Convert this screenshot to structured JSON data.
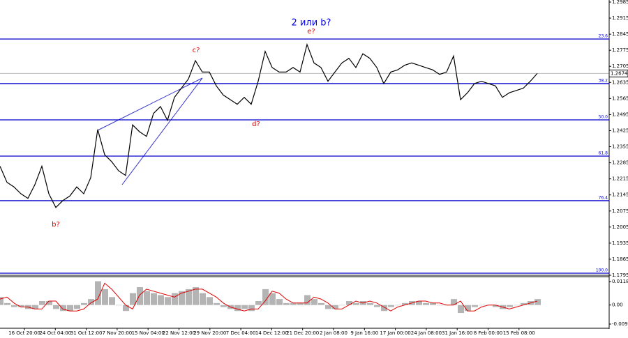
{
  "chart_data": [
    {
      "type": "line",
      "color": "#000000",
      "values": [
        1.227,
        1.22,
        1.218,
        1.215,
        1.213,
        1.219,
        1.227,
        1.215,
        1.209,
        1.212,
        1.214,
        1.218,
        1.215,
        1.222,
        1.243,
        1.232,
        1.229,
        1.225,
        1.223,
        1.245,
        1.242,
        1.24,
        1.25,
        1.253,
        1.247,
        1.257,
        1.261,
        1.265,
        1.273,
        1.268,
        1.268,
        1.262,
        1.258,
        1.256,
        1.254,
        1.257,
        1.254,
        1.264,
        1.277,
        1.27,
        1.268,
        1.268,
        1.27,
        1.268,
        1.28,
        1.272,
        1.27,
        1.264,
        1.268,
        1.272,
        1.274,
        1.27,
        1.276,
        1.274,
        1.27,
        1.263,
        1.268,
        1.269,
        1.271,
        1.272,
        1.271,
        1.27,
        1.269,
        1.267,
        1.268,
        1.275,
        1.256,
        1.259,
        1.263,
        1.264,
        1.263,
        1.262,
        1.257,
        1.259,
        1.26,
        1.261,
        1.264,
        1.2674
      ],
      "ylim": [
        1.1795,
        1.2994
      ],
      "yticks": [
        {
          "value": 1.2985,
          "label": "1.2985"
        },
        1.2915,
        1.2845,
        1.2775,
        1.2705,
        1.2635,
        1.2565,
        1.2495,
        1.2425,
        1.2355,
        1.2285,
        1.2215,
        1.2145,
        1.2075,
        1.2005,
        1.1935,
        1.1865,
        1.1795
      ],
      "x_labels": [
        "16 Oct 20:00",
        "24 Oct 04:00",
        "31 Oct 12:00",
        "7 Nov 20:00",
        "15 Nov 04:00",
        "22 Nov 12:00",
        "29 Nov 20:00",
        "7 Dec 04:00",
        "14 Dec 12:00",
        "21 Dec 20:00",
        "2 Jan 08:00",
        "9 Jan 16:00",
        "17 Jan 00:00",
        "24 Jan 08:00",
        "31 Jan 16:00",
        "8 Feb 00:00",
        "15 Feb 08:00"
      ],
      "levels": [
        {
          "value": 1.2824,
          "label": "23.6"
        },
        {
          "value": 1.263,
          "label": "38.2"
        },
        {
          "value": 1.2472,
          "label": "50.0"
        },
        {
          "value": 1.2314,
          "label": "61.8"
        },
        {
          "value": 1.212,
          "label": "76.4"
        },
        {
          "value": 1.1804,
          "label": "100.0"
        }
      ],
      "level_color": "#0000cc",
      "last_price": 1.2674,
      "annotations": [
        {
          "text": "2 или b?",
          "color": "#0000ee"
        },
        {
          "text": "e?",
          "color": "#dd0000"
        },
        {
          "text": "c?",
          "color": "#dd0000"
        },
        {
          "text": "d?",
          "color": "#dd0000"
        },
        {
          "text": "b?",
          "color": "#dd0000"
        }
      ]
    },
    {
      "type": "macd",
      "ylim": [
        -0.01135,
        0.01394
      ],
      "yticks": [
        0.01183,
        {
          "value": 0,
          "label": "0.00"
        },
        -0.00959
      ],
      "histogram": {
        "color": "#b4b4b4",
        "values": [
          0.004,
          0.001,
          -0.001,
          -0.001,
          -0.002,
          -0.002,
          0.002,
          0.002,
          -0.002,
          -0.003,
          -0.003,
          -0.002,
          0.001,
          0.003,
          0.012,
          0.008,
          0.004,
          0.0,
          -0.003,
          0.006,
          0.009,
          0.007,
          0.006,
          0.005,
          0.004,
          0.006,
          0.007,
          0.008,
          0.009,
          0.006,
          0.004,
          0.001,
          -0.001,
          -0.002,
          -0.003,
          -0.002,
          -0.003,
          0.002,
          0.008,
          0.006,
          0.003,
          0.001,
          0.001,
          0.001,
          0.005,
          0.003,
          0.001,
          -0.002,
          -0.002,
          0.0,
          0.002,
          0.001,
          0.002,
          0.001,
          -0.001,
          -0.003,
          -0.001,
          0.0,
          0.001,
          0.002,
          0.002,
          0.001,
          0.001,
          0.0,
          0.0,
          0.003,
          -0.004,
          -0.003,
          -0.001,
          0.0,
          0.0,
          -0.001,
          -0.002,
          -0.001,
          0.0,
          0.001,
          0.002,
          0.003
        ]
      },
      "signal": {
        "color": "#e00000",
        "values": [
          0.003,
          0.004,
          0.001,
          -0.001,
          -0.001,
          -0.002,
          -0.002,
          0.002,
          0.002,
          -0.002,
          -0.003,
          -0.003,
          -0.002,
          0.001,
          0.003,
          0.011,
          0.008,
          0.004,
          0.0,
          -0.002,
          0.005,
          0.008,
          0.007,
          0.006,
          0.005,
          0.004,
          0.006,
          0.007,
          0.008,
          0.008,
          0.006,
          0.004,
          0.001,
          -0.001,
          -0.002,
          -0.003,
          -0.002,
          -0.002,
          0.002,
          0.007,
          0.006,
          0.003,
          0.001,
          0.001,
          0.001,
          0.004,
          0.003,
          0.001,
          -0.002,
          -0.002,
          0.0,
          0.002,
          0.001,
          0.002,
          0.001,
          -0.001,
          -0.003,
          -0.001,
          0.0,
          0.001,
          0.002,
          0.002,
          0.001,
          0.001,
          0.0,
          0.0,
          0.002,
          -0.003,
          -0.003,
          -0.001,
          0.0,
          0.0,
          -0.001,
          -0.002,
          -0.001,
          0.0,
          0.001,
          0.002
        ]
      }
    }
  ]
}
